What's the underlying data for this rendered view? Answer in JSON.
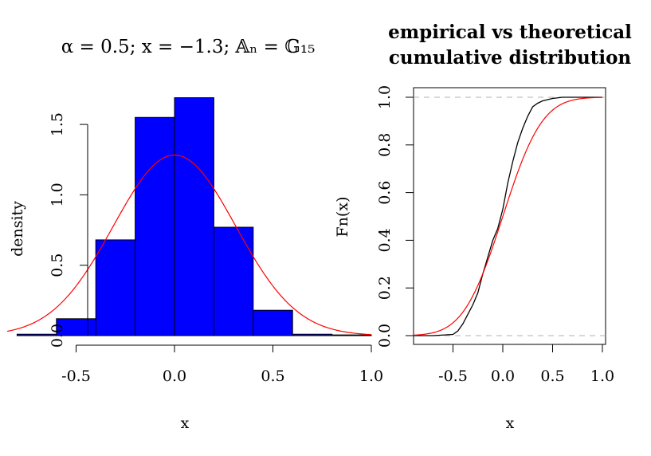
{
  "chart_data": [
    {
      "type": "bar",
      "title": "α = 0.5; x = −1.3; 𝔸ₙ = 𝔾₁₅",
      "xlabel": "x",
      "ylabel": "density",
      "xlim": [
        -0.8,
        1.0
      ],
      "ylim": [
        0,
        1.7
      ],
      "x_ticks": [
        -0.5,
        0.0,
        0.5,
        1.0
      ],
      "x_tick_labels": [
        "-0.5",
        "0.0",
        "0.5",
        "1.0"
      ],
      "y_ticks": [
        0.0,
        0.5,
        1.0,
        1.5
      ],
      "y_tick_labels": [
        "0.0",
        "0.5",
        "1.0",
        "1.5"
      ],
      "bin_edges": [
        -0.8,
        -0.6,
        -0.4,
        -0.2,
        0.0,
        0.2,
        0.4,
        0.6,
        0.8,
        1.0
      ],
      "densities": [
        0.01,
        0.12,
        0.68,
        1.55,
        1.69,
        0.77,
        0.18,
        0.01,
        0.005
      ],
      "bar_color": "#0000ff",
      "curve": {
        "type": "normal-density",
        "mean": 0.0,
        "sd": 0.311,
        "color": "#ff0000"
      }
    },
    {
      "type": "line",
      "title": [
        "empirical vs theoretical",
        "cumulative distribution"
      ],
      "xlabel": "x",
      "ylabel": "Fn(x)",
      "xlim": [
        -0.9,
        1.0
      ],
      "ylim": [
        0.0,
        1.0
      ],
      "x_ticks": [
        -0.5,
        0.0,
        0.5,
        1.0
      ],
      "x_tick_labels": [
        "-0.5",
        "0.0",
        "0.5",
        "1.0"
      ],
      "y_ticks": [
        0.0,
        0.2,
        0.4,
        0.6,
        0.8,
        1.0
      ],
      "y_tick_labels": [
        "0.0",
        "0.2",
        "0.4",
        "0.6",
        "0.8",
        "1.0"
      ],
      "reference_lines": [
        0.0,
        1.0
      ],
      "series": [
        {
          "color": "#000000",
          "x": [
            -0.9,
            -0.7,
            -0.5,
            -0.45,
            -0.4,
            -0.35,
            -0.3,
            -0.25,
            -0.2,
            -0.15,
            -0.1,
            -0.05,
            0.0,
            0.05,
            0.1,
            0.15,
            0.2,
            0.25,
            0.3,
            0.35,
            0.4,
            0.5,
            0.6,
            1.0
          ],
          "y": [
            0.0,
            0.0,
            0.005,
            0.02,
            0.05,
            0.09,
            0.13,
            0.18,
            0.26,
            0.33,
            0.4,
            0.45,
            0.53,
            0.64,
            0.73,
            0.81,
            0.87,
            0.92,
            0.96,
            0.975,
            0.985,
            0.995,
            1.0,
            1.0
          ]
        },
        {
          "color": "#ff0000",
          "curve": "normal-cdf",
          "mean": 0.0,
          "sd": 0.311
        }
      ]
    }
  ]
}
